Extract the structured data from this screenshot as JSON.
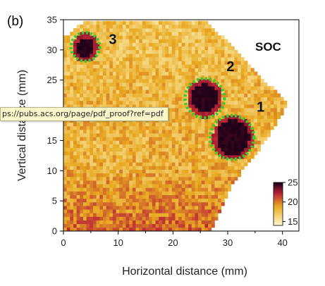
{
  "panel_label": "(b)",
  "tooltip": {
    "url": "ps://pubs.acs.org/page/pdf_proof?ref=pdf"
  },
  "chart_data": {
    "type": "heatmap",
    "title": "SOC",
    "xlabel": "Horizontal distance (mm)",
    "ylabel": "Vertical distance (mm)",
    "xlim": [
      0,
      43
    ],
    "ylim": [
      0,
      35
    ],
    "x_ticks": [
      0,
      10,
      20,
      30,
      40
    ],
    "y_ticks": [
      0,
      5,
      10,
      15,
      20,
      25,
      30,
      35
    ],
    "colorbar": {
      "min": 14,
      "max": 25,
      "ticks": [
        15,
        20,
        25
      ],
      "low_color": "#fffbcc",
      "mid_color": "#e8a820",
      "high_color": "#1a0018"
    },
    "sample_outline": [
      [
        0,
        0
      ],
      [
        27,
        0
      ],
      [
        31,
        8
      ],
      [
        37,
        15
      ],
      [
        41,
        21
      ],
      [
        26,
        35
      ],
      [
        4,
        35
      ],
      [
        0,
        32
      ]
    ],
    "pixel_size_mm": 0.6,
    "dark_spots": [
      {
        "x": 4,
        "y": 30.5,
        "r": 1.6
      },
      {
        "x": 25.8,
        "y": 22,
        "r": 2.4
      },
      {
        "x": 31,
        "y": 15.5,
        "r": 3.0
      }
    ],
    "annotations": [
      {
        "label": "3",
        "x": 4,
        "y": 30.5,
        "r": 2.6,
        "text_x": 9,
        "text_y": 31
      },
      {
        "label": "2",
        "x": 25.8,
        "y": 22,
        "r": 3.6,
        "text_x": 30.5,
        "text_y": 26.5
      },
      {
        "label": "1",
        "x": 30.8,
        "y": 15.5,
        "r": 4.0,
        "text_x": 36,
        "text_y": 19.8
      }
    ],
    "grid": false
  }
}
